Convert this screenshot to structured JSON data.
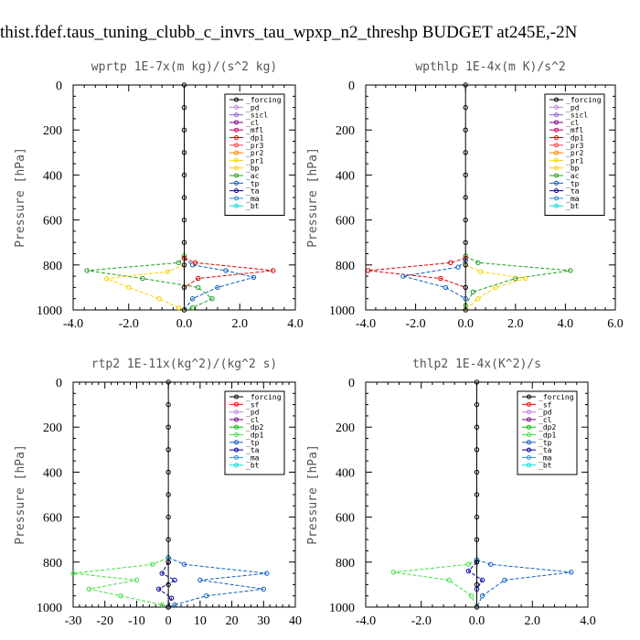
{
  "figure_title": "thist.fdef.taus_tuning_clubb_c_invrs_tau_wpxp_n2_threshp  BUDGET at245E,-2N",
  "colors": {
    "forcing": "#000000",
    "pd": "#c080e0",
    "sicl": "#9060d0",
    "cl": "#800080",
    "mfl": "#c00060",
    "dp1": "#e00000",
    "pr3": "#ff4040",
    "pr2": "#ff8000",
    "pr1": "#ffd000",
    "bp": "#ffd000",
    "ac": "#20a020",
    "tp": "#1060c0",
    "ta": "#0000a0",
    "ma": "#3090e0",
    "bt": "#00e0e0",
    "sf": "#ff0000",
    "dp2": "#00c000",
    "dp1b": "#40e040"
  },
  "chart_data": [
    {
      "type": "line",
      "title": "wprtp  1E-7x(m kg)/(s^2 kg)",
      "ylabel": "Pressure [hPa]",
      "xlim": [
        -4,
        4
      ],
      "ylim": [
        1000,
        0
      ],
      "x_ticks": [
        "-4.0",
        "-2.0",
        "0.0",
        "2.0",
        "4.0"
      ],
      "y_ticks": [
        "0",
        "200",
        "400",
        "600",
        "800",
        "1000"
      ],
      "legend_position": "top-right",
      "legend": [
        "_forcing",
        "_pd",
        "_sicl",
        "_cl",
        "_mfl",
        "_dp1",
        "_pr3",
        "_pr2",
        "_pr1",
        "_bp",
        "_ac",
        "_tp",
        "_ta",
        "_ma",
        "_bt"
      ],
      "series": [
        {
          "key": "ac",
          "x": [
            0,
            -0.2,
            -3.5,
            -1.5,
            0.5,
            1.0,
            0.3,
            0
          ],
          "y": [
            760,
            790,
            825,
            860,
            900,
            950,
            990,
            1000
          ]
        },
        {
          "key": "tp",
          "x": [
            0,
            0.3,
            1.5,
            2.5,
            1.2,
            0.3,
            0
          ],
          "y": [
            770,
            800,
            825,
            855,
            900,
            950,
            1000
          ]
        },
        {
          "key": "dp1",
          "x": [
            0,
            0.4,
            3.2,
            0.5,
            0
          ],
          "y": [
            770,
            790,
            825,
            860,
            900
          ]
        },
        {
          "key": "pr1",
          "x": [
            0,
            -0.6,
            -2.8,
            -2.0,
            -0.9,
            -0.2,
            0
          ],
          "y": [
            800,
            830,
            860,
            900,
            950,
            990,
            1000
          ]
        },
        {
          "key": "forcing",
          "x": [
            0,
            0,
            0,
            0,
            0,
            0,
            0,
            0,
            0,
            0,
            0
          ],
          "y": [
            0,
            100,
            200,
            300,
            400,
            500,
            600,
            700,
            800,
            900,
            1000
          ]
        }
      ]
    },
    {
      "type": "line",
      "title": "wpthlp  1E-4x(m K)/s^2",
      "ylabel": "Pressure [hPa]",
      "xlim": [
        -4,
        6
      ],
      "ylim": [
        1000,
        0
      ],
      "x_ticks": [
        "-4.0",
        "-2.0",
        "0.0",
        "2.0",
        "4.0",
        "6.0"
      ],
      "y_ticks": [
        "0",
        "200",
        "400",
        "600",
        "800",
        "1000"
      ],
      "legend_position": "top-right",
      "legend": [
        "_forcing",
        "_pd",
        "_sicl",
        "_cl",
        "_mfl",
        "_dp1",
        "_pr3",
        "_pr2",
        "_pr1",
        "_bp",
        "_ac",
        "_tp",
        "_ta",
        "_ma",
        "_bt"
      ],
      "series": [
        {
          "key": "ac",
          "x": [
            0,
            0.5,
            4.2,
            2.0,
            0.3,
            0
          ],
          "y": [
            760,
            790,
            825,
            860,
            920,
            980
          ]
        },
        {
          "key": "dp1",
          "x": [
            0,
            -0.6,
            -3.9,
            -1.0,
            0
          ],
          "y": [
            770,
            790,
            825,
            860,
            900
          ]
        },
        {
          "key": "tp",
          "x": [
            0,
            -0.3,
            -2.5,
            -0.8,
            0
          ],
          "y": [
            780,
            810,
            850,
            900,
            950
          ]
        },
        {
          "key": "pr1",
          "x": [
            0,
            0.6,
            2.4,
            1.2,
            0.5,
            0
          ],
          "y": [
            800,
            830,
            860,
            900,
            950,
            1000
          ]
        },
        {
          "key": "forcing",
          "x": [
            0,
            0,
            0,
            0,
            0,
            0,
            0,
            0,
            0,
            0,
            0
          ],
          "y": [
            0,
            100,
            200,
            300,
            400,
            500,
            600,
            700,
            800,
            900,
            1000
          ]
        }
      ]
    },
    {
      "type": "line",
      "title": "rtp2  1E-11x(kg^2)/(kg^2 s)",
      "ylabel": "Pressure [hPa]",
      "xlim": [
        -30,
        40
      ],
      "ylim": [
        1000,
        0
      ],
      "x_ticks": [
        "-30",
        "-20",
        "-10",
        "0",
        "10",
        "20",
        "30",
        "40"
      ],
      "y_ticks": [
        "0",
        "200",
        "400",
        "600",
        "800",
        "1000"
      ],
      "legend_position": "top-right",
      "legend": [
        "_forcing",
        "_sf",
        "_pd",
        "_cl",
        "_dp2",
        "_dp1",
        "_tp",
        "_ta",
        "_ma",
        "_bt"
      ],
      "series": [
        {
          "key": "dp1b",
          "x": [
            0,
            -5,
            -30,
            -10,
            -25,
            -15,
            -2,
            0
          ],
          "y": [
            780,
            810,
            850,
            880,
            920,
            950,
            990,
            1000
          ]
        },
        {
          "key": "tp",
          "x": [
            0,
            5,
            31,
            10,
            30,
            12,
            2,
            0
          ],
          "y": [
            780,
            810,
            850,
            880,
            920,
            950,
            990,
            1000
          ]
        },
        {
          "key": "ta",
          "x": [
            0,
            -2,
            2,
            -3,
            1,
            0
          ],
          "y": [
            800,
            850,
            880,
            920,
            960,
            1000
          ]
        },
        {
          "key": "forcing",
          "x": [
            0,
            0,
            0,
            0,
            0,
            0,
            0,
            0,
            0,
            0,
            0
          ],
          "y": [
            0,
            100,
            200,
            300,
            400,
            500,
            600,
            700,
            800,
            900,
            1000
          ]
        }
      ]
    },
    {
      "type": "line",
      "title": "thlp2  1E-4x(K^2)/s",
      "ylabel": "Pressure [hPa]",
      "xlim": [
        -4,
        4
      ],
      "ylim": [
        1000,
        0
      ],
      "x_ticks": [
        "-4.0",
        "-2.0",
        "0.0",
        "2.0",
        "4.0"
      ],
      "y_ticks": [
        "0",
        "200",
        "400",
        "600",
        "800",
        "1000"
      ],
      "legend_position": "top-right",
      "legend": [
        "_forcing",
        "_sf",
        "_pd",
        "_cl",
        "_dp2",
        "_dp1",
        "_tp",
        "_ta",
        "_ma",
        "_bt"
      ],
      "series": [
        {
          "key": "dp1b",
          "x": [
            0,
            -0.3,
            -3.0,
            -1.0,
            -0.2,
            0
          ],
          "y": [
            790,
            810,
            845,
            880,
            950,
            1000
          ]
        },
        {
          "key": "tp",
          "x": [
            0,
            0.5,
            3.4,
            1.0,
            0.2,
            0
          ],
          "y": [
            790,
            810,
            845,
            880,
            950,
            1000
          ]
        },
        {
          "key": "ta",
          "x": [
            0,
            -0.3,
            0.2,
            0
          ],
          "y": [
            800,
            840,
            880,
            920
          ]
        },
        {
          "key": "forcing",
          "x": [
            0,
            0,
            0,
            0,
            0,
            0,
            0,
            0,
            0,
            0,
            0
          ],
          "y": [
            0,
            100,
            200,
            300,
            400,
            500,
            600,
            700,
            800,
            900,
            1000
          ]
        }
      ]
    }
  ]
}
